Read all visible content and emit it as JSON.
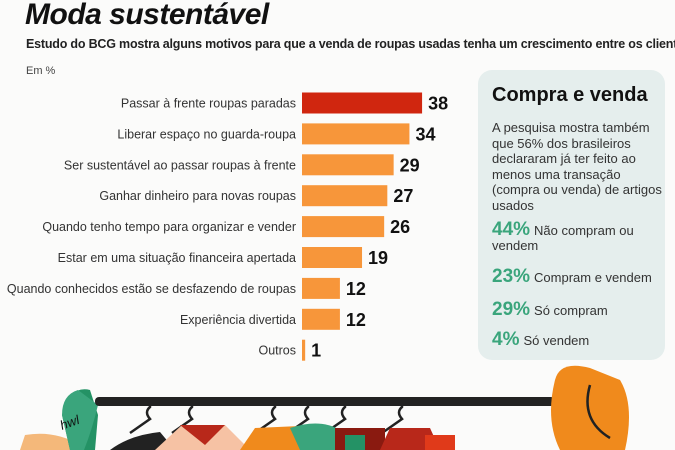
{
  "title": "Moda sustentável",
  "subtitle": "Estudo do BCG mostra alguns motivos para que a venda de roupas usadas tenha um crescimento entre os clientes",
  "unit": "Em %",
  "chart_data": {
    "type": "bar",
    "orientation": "horizontal",
    "title": "Moda sustentável",
    "categories": [
      "Passar à frente roupas paradas",
      "Liberar espaço no guarda-roupa",
      "Ser sustentável ao passar roupas à frente",
      "Ganhar dinheiro para novas roupas",
      "Quando tenho tempo para organizar e vender",
      "Estar em uma situação financeira apertada",
      "Quando conhecidos estão se desfazendo de roupas",
      "Experiência divertida",
      "Outros"
    ],
    "values": [
      38,
      34,
      29,
      27,
      26,
      19,
      12,
      12,
      1
    ],
    "unit": "%",
    "grid": false,
    "colors": {
      "highlight": "#d0260f",
      "default": "#f7963a"
    }
  },
  "panel": {
    "title": "Compra e venda",
    "text": "A pesquisa mostra também que 56% dos brasileiros declararam já ter feito ao menos uma transação (compra ou venda) de artigos usados",
    "stats": [
      {
        "pct": "44%",
        "label": "Não compram ou vendem"
      },
      {
        "pct": "23%",
        "label": "Compram e vendem"
      },
      {
        "pct": "29%",
        "label": "Só compram"
      },
      {
        "pct": "4%",
        "label": "Só vendem"
      }
    ],
    "accent": "#3aa57c"
  },
  "illustration": {
    "cap_text": "hwl"
  }
}
